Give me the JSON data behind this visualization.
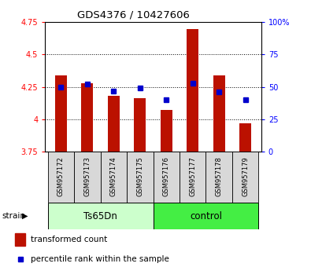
{
  "title": "GDS4376 / 10427606",
  "samples": [
    "GSM957172",
    "GSM957173",
    "GSM957174",
    "GSM957175",
    "GSM957176",
    "GSM957177",
    "GSM957178",
    "GSM957179"
  ],
  "transformed_count": [
    4.34,
    4.28,
    4.18,
    4.16,
    4.07,
    4.7,
    4.34,
    3.97
  ],
  "percentile_rank": [
    50,
    52,
    47,
    49,
    40,
    53,
    46,
    40
  ],
  "bar_bottom": 3.75,
  "ylim": [
    3.75,
    4.75
  ],
  "yticks": [
    3.75,
    4.0,
    4.25,
    4.5,
    4.75
  ],
  "ytick_labels": [
    "3.75",
    "4",
    "4.25",
    "4.5",
    "4.75"
  ],
  "right_yticks": [
    0,
    25,
    50,
    75,
    100
  ],
  "right_ytick_labels": [
    "0",
    "25",
    "50",
    "75",
    "100%"
  ],
  "bar_color": "#bb1100",
  "dot_color": "#0000cc",
  "grid_lines": [
    4.0,
    4.25,
    4.5
  ],
  "group1_label": "Ts65Dn",
  "group2_label": "control",
  "group1_color": "#ccffcc",
  "group2_color": "#44ee44",
  "strain_label": "strain",
  "legend_bar_label": "transformed count",
  "legend_dot_label": "percentile rank within the sample",
  "bar_width": 0.45,
  "bg_color": "#d8d8d8"
}
